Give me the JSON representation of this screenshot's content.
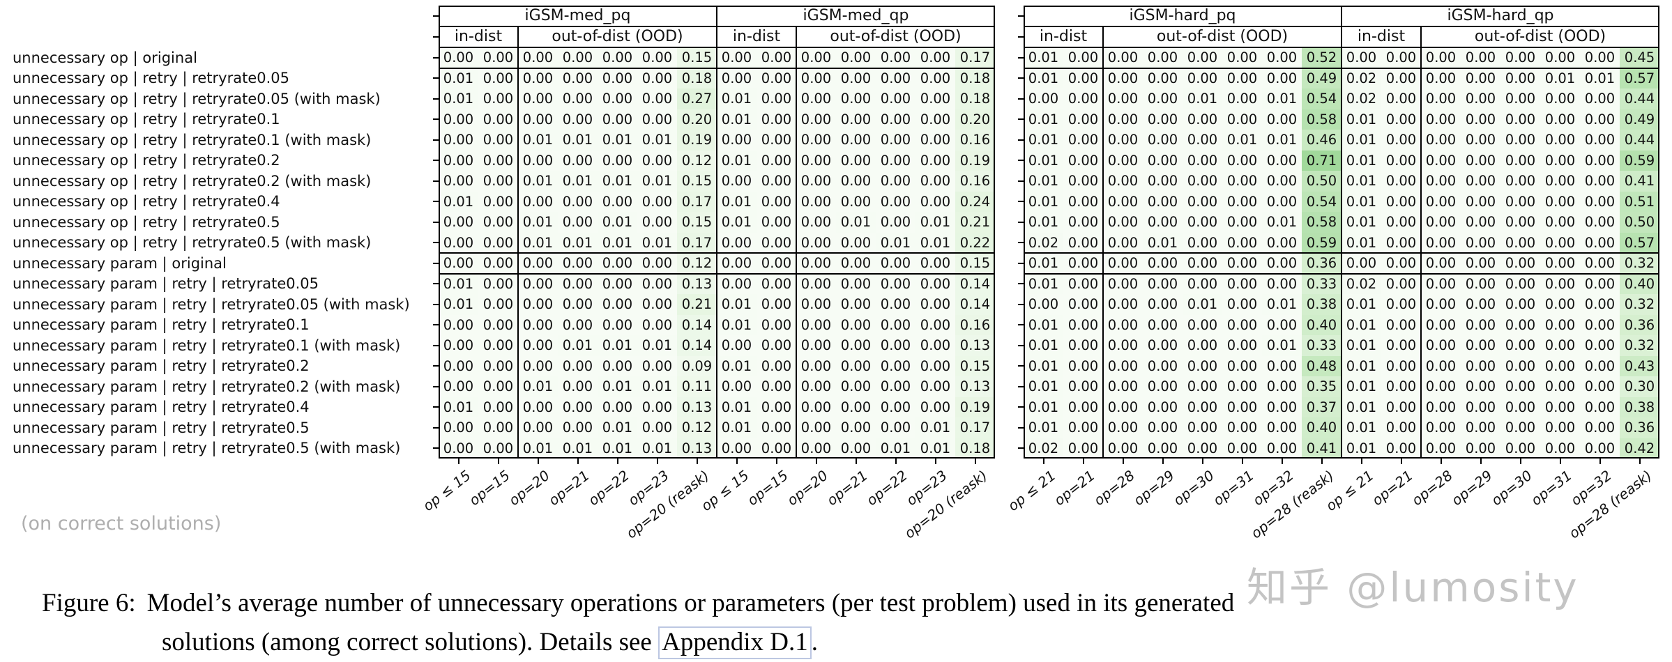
{
  "figure": {
    "side_note": "(on correct solutions)",
    "watermark": "知乎 @lumosity",
    "caption": {
      "label": "Figure 6:",
      "line1": "Model’s average number of unnecessary operations or parameters (per test problem) used in its generated",
      "line2_prefix": "solutions (among correct solutions). Details see ",
      "line2_link": "Appendix D.1",
      "line2_suffix": "."
    }
  },
  "chart_data": {
    "type": "heatmap",
    "title": "Model's average number of unnecessary operations or parameters per test problem (among correct solutions)",
    "colormap": {
      "name": "Greens",
      "vmax": 1.9,
      "low_color": "#f7fcf5",
      "high_color": "#74c476"
    },
    "value_format": "0.00",
    "rows": [
      "unnecessary op | original",
      "unnecessary op | retry | retryrate0.05",
      "unnecessary op | retry | retryrate0.05 (with mask)",
      "unnecessary op | retry | retryrate0.1",
      "unnecessary op | retry | retryrate0.1 (with mask)",
      "unnecessary op | retry | retryrate0.2",
      "unnecessary op | retry | retryrate0.2 (with mask)",
      "unnecessary op | retry | retryrate0.4",
      "unnecessary op | retry | retryrate0.5",
      "unnecessary op | retry | retryrate0.5 (with mask)",
      "unnecessary param | original",
      "unnecessary param | retry | retryrate0.05",
      "unnecessary param | retry | retryrate0.05 (with mask)",
      "unnecessary param | retry | retryrate0.1",
      "unnecessary param | retry | retryrate0.1 (with mask)",
      "unnecessary param | retry | retryrate0.2",
      "unnecessary param | retry | retryrate0.2 (with mask)",
      "unnecessary param | retry | retryrate0.4",
      "unnecessary param | retry | retryrate0.5",
      "unnecessary param | retry | retryrate0.5 (with mask)"
    ],
    "groups": [
      {
        "name": "iGSM-med_pq",
        "sections": [
          {
            "label": "in-dist",
            "columns": [
              "op ≤ 15",
              "op=15"
            ]
          },
          {
            "label": "out-of-dist (OOD)",
            "columns": [
              "op=20",
              "op=21",
              "op=22",
              "op=23",
              "op=20 (reask)"
            ]
          }
        ],
        "values": [
          [
            0.0,
            0.0,
            0.0,
            0.0,
            0.0,
            0.0,
            0.15
          ],
          [
            0.01,
            0.0,
            0.0,
            0.0,
            0.0,
            0.0,
            0.18
          ],
          [
            0.01,
            0.0,
            0.0,
            0.0,
            0.0,
            0.0,
            0.27
          ],
          [
            0.0,
            0.0,
            0.0,
            0.0,
            0.0,
            0.0,
            0.2
          ],
          [
            0.0,
            0.0,
            0.01,
            0.01,
            0.01,
            0.01,
            0.19
          ],
          [
            0.0,
            0.0,
            0.0,
            0.0,
            0.0,
            0.0,
            0.12
          ],
          [
            0.0,
            0.0,
            0.01,
            0.01,
            0.01,
            0.01,
            0.15
          ],
          [
            0.01,
            0.0,
            0.0,
            0.0,
            0.0,
            0.0,
            0.17
          ],
          [
            0.0,
            0.0,
            0.01,
            0.0,
            0.01,
            0.0,
            0.15
          ],
          [
            0.0,
            0.0,
            0.01,
            0.01,
            0.01,
            0.01,
            0.17
          ],
          [
            0.0,
            0.0,
            0.0,
            0.0,
            0.0,
            0.0,
            0.12
          ],
          [
            0.01,
            0.0,
            0.0,
            0.0,
            0.0,
            0.0,
            0.13
          ],
          [
            0.01,
            0.0,
            0.0,
            0.0,
            0.0,
            0.0,
            0.21
          ],
          [
            0.0,
            0.0,
            0.0,
            0.0,
            0.0,
            0.0,
            0.14
          ],
          [
            0.0,
            0.0,
            0.0,
            0.01,
            0.01,
            0.01,
            0.14
          ],
          [
            0.0,
            0.0,
            0.0,
            0.0,
            0.0,
            0.0,
            0.09
          ],
          [
            0.0,
            0.0,
            0.01,
            0.0,
            0.01,
            0.01,
            0.11
          ],
          [
            0.01,
            0.0,
            0.0,
            0.0,
            0.0,
            0.0,
            0.13
          ],
          [
            0.0,
            0.0,
            0.0,
            0.0,
            0.01,
            0.0,
            0.12
          ],
          [
            0.0,
            0.0,
            0.01,
            0.01,
            0.01,
            0.01,
            0.13
          ]
        ]
      },
      {
        "name": "iGSM-med_qp",
        "sections": [
          {
            "label": "in-dist",
            "columns": [
              "op ≤ 15",
              "op=15"
            ]
          },
          {
            "label": "out-of-dist (OOD)",
            "columns": [
              "op=20",
              "op=21",
              "op=22",
              "op=23",
              "op=20 (reask)"
            ]
          }
        ],
        "values": [
          [
            0.0,
            0.0,
            0.0,
            0.0,
            0.0,
            0.0,
            0.17
          ],
          [
            0.0,
            0.0,
            0.0,
            0.0,
            0.0,
            0.0,
            0.18
          ],
          [
            0.01,
            0.0,
            0.0,
            0.0,
            0.0,
            0.0,
            0.18
          ],
          [
            0.01,
            0.0,
            0.0,
            0.0,
            0.0,
            0.0,
            0.2
          ],
          [
            0.0,
            0.0,
            0.0,
            0.0,
            0.0,
            0.0,
            0.16
          ],
          [
            0.01,
            0.0,
            0.0,
            0.0,
            0.0,
            0.0,
            0.19
          ],
          [
            0.0,
            0.0,
            0.0,
            0.0,
            0.0,
            0.0,
            0.16
          ],
          [
            0.01,
            0.0,
            0.0,
            0.0,
            0.0,
            0.0,
            0.24
          ],
          [
            0.01,
            0.0,
            0.0,
            0.01,
            0.0,
            0.01,
            0.21
          ],
          [
            0.0,
            0.0,
            0.0,
            0.0,
            0.01,
            0.01,
            0.22
          ],
          [
            0.0,
            0.0,
            0.0,
            0.0,
            0.0,
            0.0,
            0.15
          ],
          [
            0.0,
            0.0,
            0.0,
            0.0,
            0.0,
            0.0,
            0.14
          ],
          [
            0.01,
            0.0,
            0.0,
            0.0,
            0.0,
            0.0,
            0.14
          ],
          [
            0.01,
            0.0,
            0.0,
            0.0,
            0.0,
            0.0,
            0.16
          ],
          [
            0.0,
            0.0,
            0.0,
            0.0,
            0.0,
            0.0,
            0.13
          ],
          [
            0.01,
            0.0,
            0.0,
            0.0,
            0.0,
            0.0,
            0.15
          ],
          [
            0.0,
            0.0,
            0.0,
            0.0,
            0.0,
            0.0,
            0.13
          ],
          [
            0.01,
            0.0,
            0.0,
            0.0,
            0.0,
            0.0,
            0.19
          ],
          [
            0.01,
            0.0,
            0.0,
            0.0,
            0.0,
            0.01,
            0.17
          ],
          [
            0.0,
            0.0,
            0.0,
            0.0,
            0.01,
            0.01,
            0.18
          ]
        ]
      },
      {
        "name": "iGSM-hard_pq",
        "sections": [
          {
            "label": "in-dist",
            "columns": [
              "op ≤ 21",
              "op=21"
            ]
          },
          {
            "label": "out-of-dist (OOD)",
            "columns": [
              "op=28",
              "op=29",
              "op=30",
              "op=31",
              "op=32",
              "op=28 (reask)"
            ]
          }
        ],
        "values": [
          [
            0.01,
            0.0,
            0.0,
            0.0,
            0.0,
            0.0,
            0.0,
            0.52
          ],
          [
            0.01,
            0.0,
            0.0,
            0.0,
            0.0,
            0.0,
            0.0,
            0.49
          ],
          [
            0.0,
            0.0,
            0.0,
            0.0,
            0.01,
            0.0,
            0.01,
            0.54
          ],
          [
            0.01,
            0.0,
            0.0,
            0.0,
            0.0,
            0.0,
            0.0,
            0.58
          ],
          [
            0.01,
            0.0,
            0.0,
            0.0,
            0.0,
            0.01,
            0.01,
            0.46
          ],
          [
            0.01,
            0.0,
            0.0,
            0.0,
            0.0,
            0.0,
            0.0,
            0.71
          ],
          [
            0.01,
            0.0,
            0.0,
            0.0,
            0.0,
            0.0,
            0.0,
            0.5
          ],
          [
            0.01,
            0.0,
            0.0,
            0.0,
            0.0,
            0.0,
            0.0,
            0.54
          ],
          [
            0.01,
            0.0,
            0.0,
            0.0,
            0.0,
            0.0,
            0.01,
            0.58
          ],
          [
            0.02,
            0.0,
            0.0,
            0.01,
            0.0,
            0.0,
            0.0,
            0.59
          ],
          [
            0.01,
            0.0,
            0.0,
            0.0,
            0.0,
            0.0,
            0.0,
            0.36
          ],
          [
            0.01,
            0.0,
            0.0,
            0.0,
            0.0,
            0.0,
            0.0,
            0.33
          ],
          [
            0.0,
            0.0,
            0.0,
            0.0,
            0.01,
            0.0,
            0.01,
            0.38
          ],
          [
            0.01,
            0.0,
            0.0,
            0.0,
            0.0,
            0.0,
            0.0,
            0.4
          ],
          [
            0.01,
            0.0,
            0.0,
            0.0,
            0.0,
            0.0,
            0.01,
            0.33
          ],
          [
            0.01,
            0.0,
            0.0,
            0.0,
            0.0,
            0.0,
            0.0,
            0.48
          ],
          [
            0.01,
            0.0,
            0.0,
            0.0,
            0.0,
            0.0,
            0.0,
            0.35
          ],
          [
            0.01,
            0.0,
            0.0,
            0.0,
            0.0,
            0.0,
            0.0,
            0.37
          ],
          [
            0.01,
            0.0,
            0.0,
            0.0,
            0.0,
            0.0,
            0.0,
            0.4
          ],
          [
            0.02,
            0.0,
            0.0,
            0.0,
            0.0,
            0.0,
            0.0,
            0.41
          ]
        ]
      },
      {
        "name": "iGSM-hard_qp",
        "sections": [
          {
            "label": "in-dist",
            "columns": [
              "op ≤ 21",
              "op=21"
            ]
          },
          {
            "label": "out-of-dist (OOD)",
            "columns": [
              "op=28",
              "op=29",
              "op=30",
              "op=31",
              "op=32",
              "op=28 (reask)"
            ]
          }
        ],
        "values": [
          [
            0.0,
            0.0,
            0.0,
            0.0,
            0.0,
            0.0,
            0.0,
            0.45
          ],
          [
            0.02,
            0.0,
            0.0,
            0.0,
            0.0,
            0.01,
            0.01,
            0.57
          ],
          [
            0.02,
            0.0,
            0.0,
            0.0,
            0.0,
            0.0,
            0.0,
            0.44
          ],
          [
            0.01,
            0.0,
            0.0,
            0.0,
            0.0,
            0.0,
            0.0,
            0.49
          ],
          [
            0.01,
            0.0,
            0.0,
            0.0,
            0.0,
            0.0,
            0.0,
            0.44
          ],
          [
            0.01,
            0.0,
            0.0,
            0.0,
            0.0,
            0.0,
            0.0,
            0.59
          ],
          [
            0.01,
            0.0,
            0.0,
            0.0,
            0.0,
            0.0,
            0.0,
            0.41
          ],
          [
            0.01,
            0.0,
            0.0,
            0.0,
            0.0,
            0.0,
            0.0,
            0.51
          ],
          [
            0.01,
            0.0,
            0.0,
            0.0,
            0.0,
            0.0,
            0.0,
            0.5
          ],
          [
            0.01,
            0.0,
            0.0,
            0.0,
            0.0,
            0.0,
            0.0,
            0.57
          ],
          [
            0.0,
            0.0,
            0.0,
            0.0,
            0.0,
            0.0,
            0.0,
            0.32
          ],
          [
            0.02,
            0.0,
            0.0,
            0.0,
            0.0,
            0.0,
            0.0,
            0.4
          ],
          [
            0.01,
            0.0,
            0.0,
            0.0,
            0.0,
            0.0,
            0.0,
            0.32
          ],
          [
            0.01,
            0.0,
            0.0,
            0.0,
            0.0,
            0.0,
            0.0,
            0.36
          ],
          [
            0.01,
            0.0,
            0.0,
            0.0,
            0.0,
            0.0,
            0.0,
            0.32
          ],
          [
            0.01,
            0.0,
            0.0,
            0.0,
            0.0,
            0.0,
            0.0,
            0.43
          ],
          [
            0.01,
            0.0,
            0.0,
            0.0,
            0.0,
            0.0,
            0.0,
            0.3
          ],
          [
            0.01,
            0.0,
            0.0,
            0.0,
            0.0,
            0.0,
            0.0,
            0.38
          ],
          [
            0.01,
            0.0,
            0.0,
            0.0,
            0.0,
            0.0,
            0.0,
            0.36
          ],
          [
            0.01,
            0.0,
            0.0,
            0.0,
            0.0,
            0.0,
            0.0,
            0.42
          ]
        ]
      }
    ]
  }
}
